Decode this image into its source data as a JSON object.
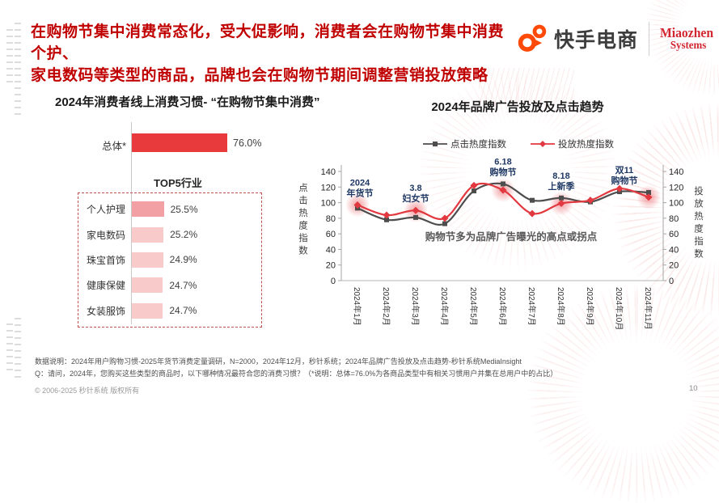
{
  "header": {
    "title_lines": [
      "在购物节集中消费常态化，受大促影响，消费者会在购物节集中消费个护、",
      "家电数码等类型的商品，品牌也会在购物节期间调整营销投放策略"
    ],
    "brand_name": "快手电商",
    "partner_name_line1": "Miaozhen",
    "partner_name_line2": "Systems",
    "title_color": "#c00000",
    "brand_icon_color": "#ff4906",
    "partner_color": "#d22630"
  },
  "chart_data": [
    {
      "type": "bar",
      "title": "2024年消费者线上消费习惯- “在购物节集中消费”",
      "overall_label": "总体*",
      "overall_value": 76.0,
      "overall_display": "76.0%",
      "group_title": "TOP5行业",
      "categories": [
        "个人护理",
        "家电数码",
        "珠宝首饰",
        "健康保健",
        "女装服饰"
      ],
      "values": [
        25.5,
        25.2,
        24.9,
        24.7,
        24.7
      ],
      "displays": [
        "25.5%",
        "25.2%",
        "24.9%",
        "24.7%",
        "24.7%"
      ],
      "unit": "%",
      "xlim": [
        0,
        100
      ],
      "bar_color": "#e8393d",
      "top_bar_colors": [
        "#f2a0a4",
        "#f8caca",
        "#f8caca",
        "#f8caca",
        "#f8caca"
      ]
    },
    {
      "type": "line",
      "title": "2024年品牌广告投放及点击趋势",
      "categories": [
        "2024年1月",
        "2024年2月",
        "2024年3月",
        "2024年4月",
        "2024年5月",
        "2024年6月",
        "2024年7月",
        "2024年8月",
        "2024年9月",
        "2024年10月",
        "2024年11月"
      ],
      "series": [
        {
          "name": "点击热度指数",
          "color": "#4d4d4d",
          "marker": "square",
          "values": [
            93,
            78,
            81,
            73,
            115,
            124,
            103,
            106,
            101,
            114,
            113
          ]
        },
        {
          "name": "投放热度指数",
          "color": "#e2383f",
          "marker": "diamond",
          "values": [
            97,
            84,
            90,
            80,
            122,
            116,
            86,
            99,
            103,
            118,
            107
          ]
        }
      ],
      "ylim": [
        0,
        140
      ],
      "ytick_step": 20,
      "left_axis_label": "点击热度指数",
      "right_axis_label": "投放热度指数",
      "legend_position": "top",
      "grid": false,
      "annotations": [
        {
          "index": 0,
          "lines": [
            "2024",
            "年货节"
          ],
          "dx": 3
        },
        {
          "index": 2,
          "lines": [
            "3.8",
            "妇女节"
          ],
          "dx": 0
        },
        {
          "index": 5,
          "lines": [
            "6.18",
            "购物节"
          ],
          "dx": 0
        },
        {
          "index": 7,
          "lines": [
            "8.18",
            "上新季"
          ],
          "dx": 0
        },
        {
          "index": 10,
          "lines": [
            "双11",
            "购物节"
          ],
          "dx": -30
        }
      ],
      "annotation_color": "#1f3864",
      "highlight_indices": [
        0,
        2,
        5,
        7,
        10
      ],
      "note": "购物节多为品牌广告曝光的高点或拐点"
    }
  ],
  "footer": {
    "line1": "数据说明：2024年用户购物习惯-2025年货节消费定量调研，N=2000，2024年12月，秒针系统；2024年品牌广告投放及点击趋势-秒针系统MediaInsight",
    "line2": "Q：请问，2024年，您购买这些类型的商品时，以下哪种情况最符合您的消费习惯？（*说明：总体=76.0%为各商品类型中有相关习惯用户并集在总用户中的占比）",
    "copyright": "© 2006-2025 秒针系统 版权所有",
    "page_number": "10"
  }
}
